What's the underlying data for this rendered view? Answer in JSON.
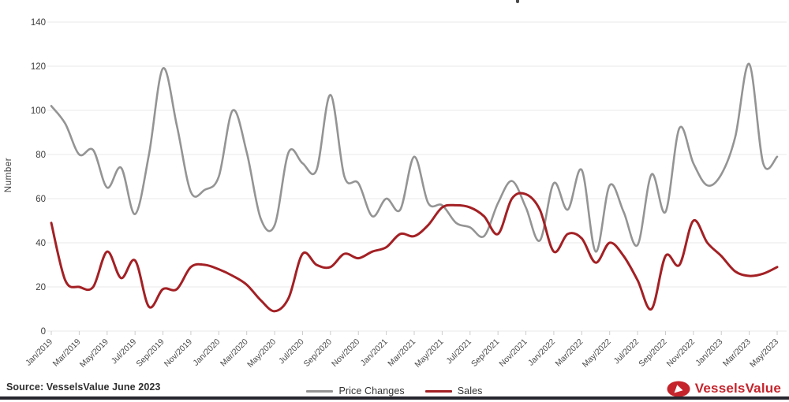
{
  "page": {
    "source_note": "Source: VesselsValue June 2023",
    "bottom_bar_color": "#26262e"
  },
  "logo": {
    "text": "VesselsValue",
    "color": "#c5242c",
    "icon": "vesselsvalue-oval-sail-icon"
  },
  "chart_data": {
    "type": "line",
    "title": "",
    "xlabel": "",
    "ylabel": "Number",
    "ylim": [
      0,
      140
    ],
    "y_ticks": [
      0,
      20,
      40,
      60,
      80,
      100,
      120,
      140
    ],
    "grid": true,
    "legend_position": "bottom",
    "x_tick_every": 2,
    "x": [
      "Jan/2019",
      "Feb/2019",
      "Mar/2019",
      "Apr/2019",
      "May/2019",
      "Jun/2019",
      "Jul/2019",
      "Aug/2019",
      "Sep/2019",
      "Oct/2019",
      "Nov/2019",
      "Dec/2019",
      "Jan/2020",
      "Feb/2020",
      "Mar/2020",
      "Apr/2020",
      "May/2020",
      "Jun/2020",
      "Jul/2020",
      "Aug/2020",
      "Sep/2020",
      "Oct/2020",
      "Nov/2020",
      "Dec/2020",
      "Jan/2021",
      "Feb/2021",
      "Mar/2021",
      "Apr/2021",
      "May/2021",
      "Jun/2021",
      "Jul/2021",
      "Aug/2021",
      "Sep/2021",
      "Oct/2021",
      "Nov/2021",
      "Dec/2021",
      "Jan/2022",
      "Feb/2022",
      "Mar/2022",
      "Apr/2022",
      "May/2022",
      "Jun/2022",
      "Jul/2022",
      "Aug/2022",
      "Sep/2022",
      "Oct/2022",
      "Nov/2022",
      "Dec/2022",
      "Jan/2023",
      "Feb/2023",
      "Mar/2023",
      "Apr/2023",
      "May/2023"
    ],
    "series": [
      {
        "name": "Price Changes",
        "color": "#949494",
        "stroke_width": 2.6,
        "values": [
          102,
          94,
          80,
          82,
          65,
          74,
          53,
          80,
          119,
          93,
          63,
          64,
          70,
          100,
          81,
          51,
          48,
          81,
          76,
          73,
          107,
          70,
          67,
          52,
          60,
          55,
          79,
          58,
          57,
          49,
          47,
          43,
          58,
          68,
          56,
          41,
          67,
          55,
          73,
          36,
          66,
          54,
          39,
          71,
          54,
          92,
          76,
          66,
          71,
          88,
          121,
          76,
          79
        ]
      },
      {
        "name": "Sales",
        "color": "#a32024",
        "stroke_width": 3,
        "values": [
          49,
          23,
          20,
          20,
          36,
          24,
          32,
          11,
          19,
          19,
          29,
          30,
          28,
          25,
          21,
          14,
          9,
          15,
          35,
          30,
          29,
          35,
          33,
          36,
          38,
          44,
          43,
          48,
          56,
          57,
          56,
          52,
          44,
          60,
          62,
          55,
          36,
          44,
          42,
          31,
          40,
          34,
          23,
          10,
          34,
          30,
          50,
          40,
          34,
          27,
          25,
          26,
          29
        ]
      }
    ],
    "style": {
      "grid_color": "#e9e9e9",
      "tick_color": "#cccccc",
      "y_tick_label_color": "#3d3d3d",
      "x_tick_label_color": "#4a4a4a"
    }
  }
}
